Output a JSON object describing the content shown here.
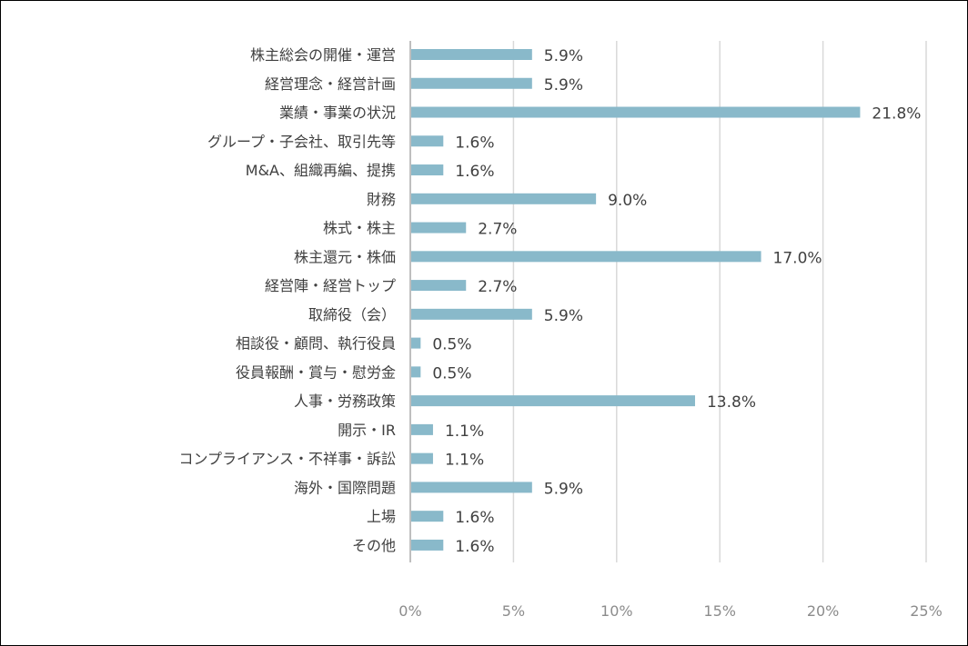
{
  "chart_data": {
    "type": "bar",
    "orientation": "horizontal",
    "title": "",
    "xlabel": "",
    "ylabel": "",
    "xlim": [
      0,
      25
    ],
    "x_ticks": [
      "0%",
      "5%",
      "10%",
      "15%",
      "20%",
      "25%"
    ],
    "x_tick_values": [
      0,
      5,
      10,
      15,
      20,
      25
    ],
    "grid": "vertical",
    "bar_color": "#89b9ca",
    "grid_color": "#d9d9d9",
    "categories": [
      "株主総会の開催・運営",
      "経営理念・経営計画",
      "業績・事業の状況",
      "グループ・子会社、取引先等",
      "M&A、組織再編、提携",
      "財務",
      "株式・株主",
      "株主還元・株価",
      "経営陣・経営トップ",
      "取締役（会）",
      "相談役・顧問、執行役員",
      "役員報酬・賞与・慰労金",
      "人事・労務政策",
      "開示・IR",
      "コンプライアンス・不祥事・訴訟",
      "海外・国際問題",
      "上場",
      "その他"
    ],
    "values": [
      5.9,
      5.9,
      21.8,
      1.6,
      1.6,
      9.0,
      2.7,
      17.0,
      2.7,
      5.9,
      0.5,
      0.5,
      13.8,
      1.1,
      1.1,
      5.9,
      1.6,
      1.6
    ],
    "data_labels": [
      "5.9%",
      "5.9%",
      "21.8%",
      "1.6%",
      "1.6%",
      "9.0%",
      "2.7%",
      "17.0%",
      "2.7%",
      "5.9%",
      "0.5%",
      "0.5%",
      "13.8%",
      "1.1%",
      "1.1%",
      "5.9%",
      "1.6%",
      "1.6%"
    ]
  }
}
